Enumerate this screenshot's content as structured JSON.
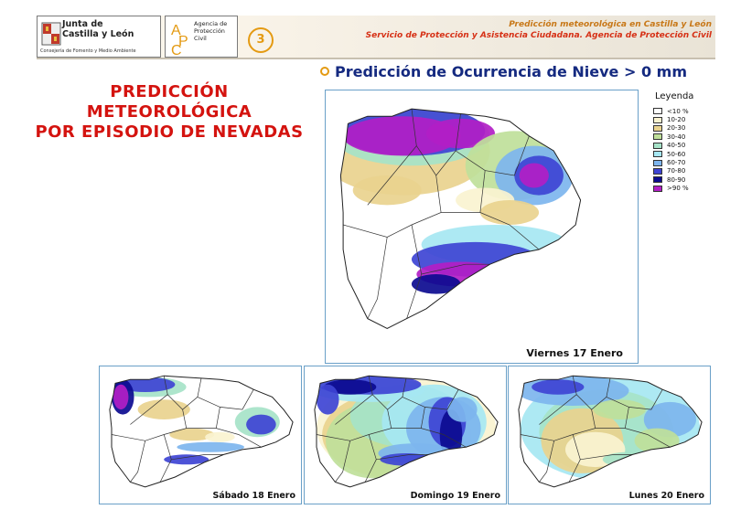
{
  "header": {
    "org_line1": "Junta de",
    "org_line2": "Castilla y León",
    "org_department": "Consejería de Fomento y Medio Ambiente",
    "agency_name": "Agencia de Protección Civil",
    "agency_logo_letters": "APC",
    "page_number": "3",
    "line1": "Predicción meteorológica en Castilla y León",
    "line2": "Servicio de Protección y Asistencia Ciudadana. Agencia de Protección Civil"
  },
  "main_title": "Predicción de Ocurrencia de Nieve > 0 mm",
  "side_title": [
    "PREDICCIÓN",
    "METEOROLÓGICA",
    "POR EPISODIO DE NEVADAS"
  ],
  "legend": {
    "title": "Leyenda",
    "items": [
      {
        "label": "<10  %",
        "color": "#ffffff"
      },
      {
        "label": "10-20",
        "color": "#faf3d0"
      },
      {
        "label": "20-30",
        "color": "#e9d38e"
      },
      {
        "label": "30-40",
        "color": "#bfe09a"
      },
      {
        "label": "40-50",
        "color": "#a6e3c8"
      },
      {
        "label": "50-60",
        "color": "#a6e7f2"
      },
      {
        "label": "60-70",
        "color": "#7db5ee"
      },
      {
        "label": "70-80",
        "color": "#3e44d4"
      },
      {
        "label": "80-90",
        "color": "#0c0b90"
      },
      {
        "label": ">90  %",
        "color": "#b21ec6"
      }
    ]
  },
  "maps": [
    {
      "label": "Viernes 17 Enero",
      "scenario": "fri"
    },
    {
      "label": "Sábado 18 Enero",
      "scenario": "sat"
    },
    {
      "label": "Domingo 19 Enero",
      "scenario": "sun"
    },
    {
      "label": "Lunes 20 Enero",
      "scenario": "mon"
    }
  ],
  "colors": {
    "title_red": "#d4130f",
    "title_blue": "#152a80",
    "accent_orange": "#e49a12"
  }
}
